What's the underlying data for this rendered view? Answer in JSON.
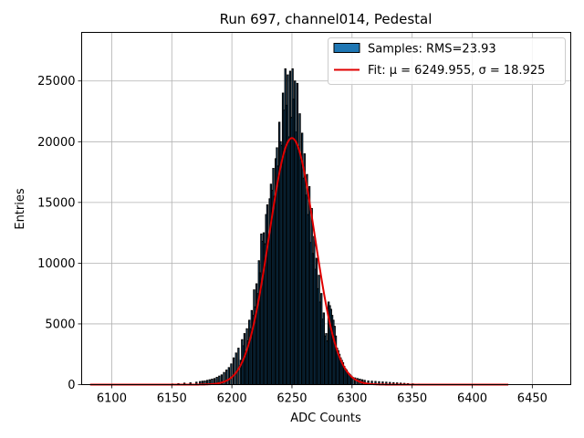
{
  "chart_data": {
    "type": "bar",
    "title": "Run 697, channel014, Pedestal",
    "xlabel": "ADC Counts",
    "ylabel": "Entries",
    "xlim": [
      6075,
      6482
    ],
    "ylim": [
      0,
      29000
    ],
    "xticks": [
      6100,
      6150,
      6200,
      6250,
      6300,
      6350,
      6400,
      6450
    ],
    "yticks": [
      0,
      5000,
      10000,
      15000,
      20000,
      25000
    ],
    "grid": true,
    "legend_position": "upper right",
    "legend": [
      {
        "label": "Samples: RMS=23.93",
        "kind": "patch"
      },
      {
        "label": "Fit: μ = 6249.955, σ = 18.925",
        "kind": "line"
      }
    ],
    "colors": {
      "bars": "#1f77b4",
      "bar_edge": "#000000",
      "fit": "#e00000",
      "grid": "#b0b0b0"
    },
    "histogram": {
      "bin_width": 1,
      "bins": [
        [
          6150,
          50
        ],
        [
          6155,
          80
        ],
        [
          6160,
          120
        ],
        [
          6165,
          150
        ],
        [
          6170,
          200
        ],
        [
          6173,
          250
        ],
        [
          6175,
          280
        ],
        [
          6177,
          300
        ],
        [
          6179,
          350
        ],
        [
          6181,
          400
        ],
        [
          6183,
          450
        ],
        [
          6185,
          500
        ],
        [
          6187,
          600
        ],
        [
          6189,
          700
        ],
        [
          6191,
          800
        ],
        [
          6193,
          1000
        ],
        [
          6195,
          1200
        ],
        [
          6197,
          1400
        ],
        [
          6199,
          1700
        ],
        [
          6201,
          2200
        ],
        [
          6203,
          2600
        ],
        [
          6205,
          3000
        ],
        [
          6207,
          2000
        ],
        [
          6208,
          3700
        ],
        [
          6209,
          3200
        ],
        [
          6210,
          4200
        ],
        [
          6211,
          2700
        ],
        [
          6212,
          4600
        ],
        [
          6213,
          3600
        ],
        [
          6214,
          5300
        ],
        [
          6215,
          4600
        ],
        [
          6216,
          6100
        ],
        [
          6217,
          5700
        ],
        [
          6218,
          7800
        ],
        [
          6219,
          6400
        ],
        [
          6220,
          8300
        ],
        [
          6221,
          7500
        ],
        [
          6222,
          10200
        ],
        [
          6223,
          9200
        ],
        [
          6224,
          12400
        ],
        [
          6225,
          11800
        ],
        [
          6226,
          12500
        ],
        [
          6227,
          11600
        ],
        [
          6228,
          14000
        ],
        [
          6229,
          14800
        ],
        [
          6230,
          12200
        ],
        [
          6231,
          15300
        ],
        [
          6232,
          16500
        ],
        [
          6233,
          16000
        ],
        [
          6234,
          17800
        ],
        [
          6235,
          15500
        ],
        [
          6236,
          18600
        ],
        [
          6237,
          19500
        ],
        [
          6238,
          18000
        ],
        [
          6239,
          21600
        ],
        [
          6240,
          20000
        ],
        [
          6241,
          19700
        ],
        [
          6242,
          24000
        ],
        [
          6243,
          22600
        ],
        [
          6244,
          26000
        ],
        [
          6245,
          23000
        ],
        [
          6246,
          25500
        ],
        [
          6247,
          20400
        ],
        [
          6248,
          25800
        ],
        [
          6249,
          22000
        ],
        [
          6250,
          26000
        ],
        [
          6251,
          23500
        ],
        [
          6252,
          25000
        ],
        [
          6253,
          20800
        ],
        [
          6254,
          24800
        ],
        [
          6255,
          19500
        ],
        [
          6256,
          22300
        ],
        [
          6257,
          18500
        ],
        [
          6258,
          20700
        ],
        [
          6259,
          17000
        ],
        [
          6260,
          19000
        ],
        [
          6261,
          15600
        ],
        [
          6262,
          17300
        ],
        [
          6263,
          14000
        ],
        [
          6264,
          16300
        ],
        [
          6265,
          11700
        ],
        [
          6266,
          14500
        ],
        [
          6267,
          10800
        ],
        [
          6268,
          12200
        ],
        [
          6269,
          9500
        ],
        [
          6270,
          10400
        ],
        [
          6271,
          7900
        ],
        [
          6272,
          9000
        ],
        [
          6273,
          6800
        ],
        [
          6274,
          7500
        ],
        [
          6275,
          5400
        ],
        [
          6276,
          5900
        ],
        [
          6277,
          4000
        ],
        [
          6278,
          4200
        ],
        [
          6279,
          3600
        ],
        [
          6280,
          6800
        ],
        [
          6281,
          6500
        ],
        [
          6282,
          6200
        ],
        [
          6283,
          5700
        ],
        [
          6284,
          5300
        ],
        [
          6285,
          4800
        ],
        [
          6286,
          4000
        ],
        [
          6287,
          3000
        ],
        [
          6288,
          2800
        ],
        [
          6289,
          2500
        ],
        [
          6290,
          2200
        ],
        [
          6291,
          2000
        ],
        [
          6292,
          1800
        ],
        [
          6293,
          1500
        ],
        [
          6294,
          1300
        ],
        [
          6295,
          1200
        ],
        [
          6296,
          1000
        ],
        [
          6297,
          900
        ],
        [
          6298,
          800
        ],
        [
          6299,
          700
        ],
        [
          6300,
          600
        ],
        [
          6302,
          550
        ],
        [
          6304,
          500
        ],
        [
          6306,
          450
        ],
        [
          6308,
          400
        ],
        [
          6310,
          350
        ],
        [
          6313,
          300
        ],
        [
          6316,
          280
        ],
        [
          6319,
          260
        ],
        [
          6322,
          240
        ],
        [
          6325,
          220
        ],
        [
          6328,
          200
        ],
        [
          6331,
          180
        ],
        [
          6334,
          160
        ],
        [
          6337,
          140
        ],
        [
          6340,
          120
        ],
        [
          6343,
          100
        ],
        [
          6346,
          80
        ],
        [
          6350,
          60
        ],
        [
          6355,
          40
        ],
        [
          6360,
          30
        ]
      ]
    },
    "fit": {
      "mu": 6249.955,
      "sigma": 18.925,
      "amplitude": 20300,
      "x_range": [
        6082,
        6430
      ]
    }
  }
}
